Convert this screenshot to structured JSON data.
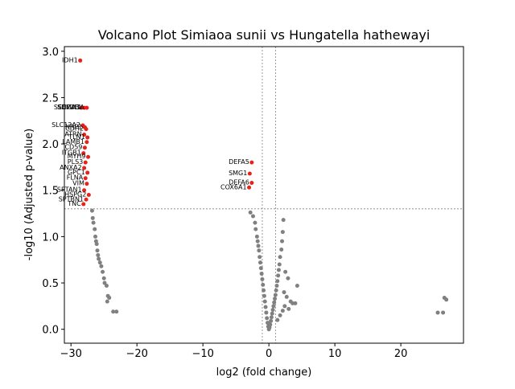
{
  "chart_data": {
    "type": "scatter",
    "title": "Volcano Plot Simiaoa sunii vs Hungatella hathewayi",
    "xlabel": "log2 (fold change)",
    "ylabel": "-log10 (Adjusted p-value)",
    "xlim": [
      -31,
      29.5
    ],
    "ylim": [
      -0.15,
      3.05
    ],
    "x_ticks": [
      -30,
      -20,
      -10,
      0,
      10,
      20
    ],
    "y_ticks": [
      0.0,
      0.5,
      1.0,
      1.5,
      2.0,
      2.5,
      3.0
    ],
    "thresholds": {
      "vertical": [
        -1,
        1
      ],
      "horizontal": 1.3
    },
    "colors": {
      "significant": "#e8211b",
      "not_significant": "#808080",
      "threshold": "#808080"
    },
    "series": [
      {
        "points": [
          {
            "x": -28.6,
            "y": 2.9,
            "label": "IDH1"
          },
          {
            "x": -28.4,
            "y": 2.39,
            "label": "SEC24B"
          },
          {
            "x": -28.0,
            "y": 2.39,
            "label": "SDF2L1"
          },
          {
            "x": -27.6,
            "y": 2.39,
            "label": "SEMA3A"
          },
          {
            "x": -28.2,
            "y": 2.2,
            "label": "SLC12A2"
          },
          {
            "x": -27.9,
            "y": 2.18,
            "label": "NRP1"
          },
          {
            "x": -27.7,
            "y": 2.16,
            "label": "CDH2"
          },
          {
            "x": -28.0,
            "y": 2.1,
            "label": "ATRN"
          },
          {
            "x": -27.5,
            "y": 2.07,
            "label": "TLN1"
          },
          {
            "x": -27.6,
            "y": 2.02,
            "label": "LAMB1"
          },
          {
            "x": -27.9,
            "y": 1.96,
            "label": "CD59"
          },
          {
            "x": -28.1,
            "y": 1.9,
            "label": "ITGB1"
          },
          {
            "x": -27.4,
            "y": 1.86,
            "label": "MYH9"
          },
          {
            "x": -27.8,
            "y": 1.8,
            "label": "PLS3"
          },
          {
            "x": -28.0,
            "y": 1.74,
            "label": "ANXA2"
          },
          {
            "x": -27.5,
            "y": 1.69,
            "label": "GPC1"
          },
          {
            "x": -27.8,
            "y": 1.63,
            "label": "FLNA"
          },
          {
            "x": -27.6,
            "y": 1.57,
            "label": "VIM"
          },
          {
            "x": -28.0,
            "y": 1.5,
            "label": "SPTAN1"
          },
          {
            "x": -27.3,
            "y": 1.45,
            "label": "HSPG2"
          },
          {
            "x": -27.7,
            "y": 1.4,
            "label": "SPTBN1"
          },
          {
            "x": -28.1,
            "y": 1.35,
            "label": "TNC"
          },
          {
            "x": -2.6,
            "y": 1.8,
            "label": "DEFA5"
          },
          {
            "x": -2.9,
            "y": 1.68,
            "label": "SMG1"
          },
          {
            "x": -2.6,
            "y": 1.58,
            "label": "DEFA6"
          },
          {
            "x": -3.0,
            "y": 1.53,
            "label": "COX6A1"
          }
        ]
      },
      {
        "points": [
          {
            "x": -26.8,
            "y": 1.28
          },
          {
            "x": -26.7,
            "y": 1.2
          },
          {
            "x": -26.6,
            "y": 1.15
          },
          {
            "x": -26.4,
            "y": 1.08
          },
          {
            "x": -26.3,
            "y": 1.0
          },
          {
            "x": -26.2,
            "y": 0.95
          },
          {
            "x": -26.1,
            "y": 0.92
          },
          {
            "x": -26.0,
            "y": 0.85
          },
          {
            "x": -25.9,
            "y": 0.8
          },
          {
            "x": -25.8,
            "y": 0.76
          },
          {
            "x": -25.6,
            "y": 0.72
          },
          {
            "x": -25.4,
            "y": 0.68
          },
          {
            "x": -25.2,
            "y": 0.62
          },
          {
            "x": -25.0,
            "y": 0.55
          },
          {
            "x": -24.9,
            "y": 0.5
          },
          {
            "x": -24.6,
            "y": 0.47
          },
          {
            "x": -24.4,
            "y": 0.36
          },
          {
            "x": -24.2,
            "y": 0.34
          },
          {
            "x": -24.5,
            "y": 0.3
          },
          {
            "x": -23.6,
            "y": 0.19
          },
          {
            "x": -23.1,
            "y": 0.19
          },
          {
            "x": -2.8,
            "y": 1.26
          },
          {
            "x": -2.4,
            "y": 1.22
          },
          {
            "x": -2.1,
            "y": 1.15
          },
          {
            "x": -2.0,
            "y": 1.08
          },
          {
            "x": -1.8,
            "y": 1.0
          },
          {
            "x": -1.7,
            "y": 0.95
          },
          {
            "x": -1.6,
            "y": 0.9
          },
          {
            "x": -1.5,
            "y": 0.85
          },
          {
            "x": -1.4,
            "y": 0.78
          },
          {
            "x": -1.3,
            "y": 0.72
          },
          {
            "x": -1.2,
            "y": 0.66
          },
          {
            "x": -1.1,
            "y": 0.6
          },
          {
            "x": -1.0,
            "y": 0.54
          },
          {
            "x": -0.9,
            "y": 0.48
          },
          {
            "x": -0.8,
            "y": 0.42
          },
          {
            "x": -0.7,
            "y": 0.36
          },
          {
            "x": -0.6,
            "y": 0.3
          },
          {
            "x": -0.5,
            "y": 0.24
          },
          {
            "x": -0.4,
            "y": 0.18
          },
          {
            "x": -0.3,
            "y": 0.12
          },
          {
            "x": -0.2,
            "y": 0.07
          },
          {
            "x": -0.1,
            "y": 0.03
          },
          {
            "x": 0.0,
            "y": 0.0
          },
          {
            "x": 0.1,
            "y": 0.02
          },
          {
            "x": 0.2,
            "y": 0.05
          },
          {
            "x": 0.3,
            "y": 0.09
          },
          {
            "x": 0.4,
            "y": 0.13
          },
          {
            "x": 0.5,
            "y": 0.17
          },
          {
            "x": 0.6,
            "y": 0.21
          },
          {
            "x": 0.7,
            "y": 0.25
          },
          {
            "x": 0.8,
            "y": 0.29
          },
          {
            "x": 0.9,
            "y": 0.33
          },
          {
            "x": 1.0,
            "y": 0.37
          },
          {
            "x": 1.1,
            "y": 0.42
          },
          {
            "x": 1.2,
            "y": 0.47
          },
          {
            "x": 1.3,
            "y": 0.52
          },
          {
            "x": 1.4,
            "y": 0.58
          },
          {
            "x": 1.5,
            "y": 0.64
          },
          {
            "x": 1.6,
            "y": 0.7
          },
          {
            "x": 1.7,
            "y": 0.78
          },
          {
            "x": 1.9,
            "y": 0.86
          },
          {
            "x": 2.0,
            "y": 0.95
          },
          {
            "x": 2.1,
            "y": 1.05
          },
          {
            "x": 2.2,
            "y": 1.18
          },
          {
            "x": 2.3,
            "y": 0.4
          },
          {
            "x": 2.5,
            "y": 0.62
          },
          {
            "x": 2.7,
            "y": 0.35
          },
          {
            "x": 2.9,
            "y": 0.55
          },
          {
            "x": 3.0,
            "y": 0.22
          },
          {
            "x": 3.3,
            "y": 0.3
          },
          {
            "x": 3.6,
            "y": 0.28
          },
          {
            "x": 4.0,
            "y": 0.28
          },
          {
            "x": 4.3,
            "y": 0.47
          },
          {
            "x": 1.3,
            "y": 0.1
          },
          {
            "x": 1.7,
            "y": 0.15
          },
          {
            "x": 2.1,
            "y": 0.2
          },
          {
            "x": 2.4,
            "y": 0.25
          },
          {
            "x": 25.6,
            "y": 0.18
          },
          {
            "x": 26.4,
            "y": 0.18
          },
          {
            "x": 26.6,
            "y": 0.34
          },
          {
            "x": 26.9,
            "y": 0.32
          }
        ]
      }
    ]
  }
}
